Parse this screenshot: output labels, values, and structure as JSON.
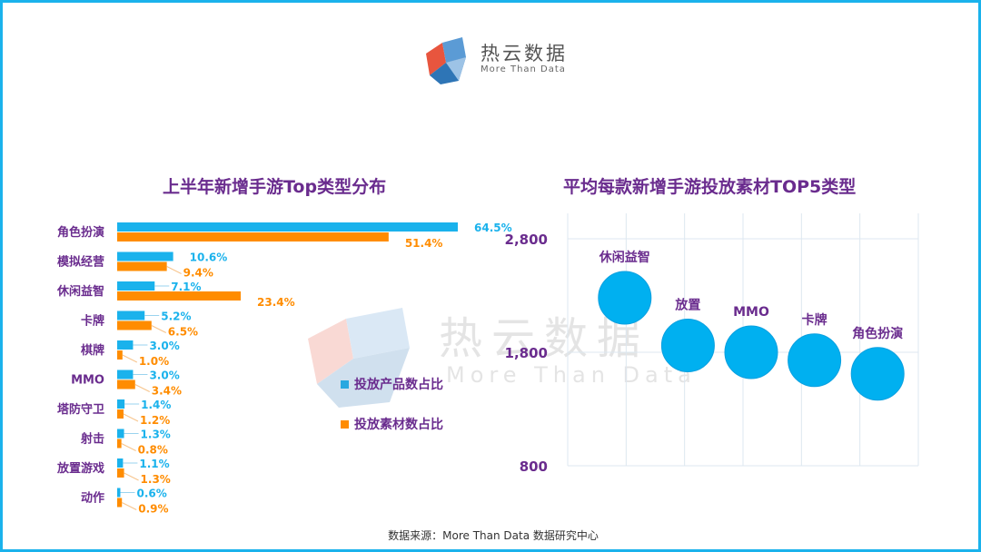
{
  "logo": {
    "title": "热云数据",
    "subtitle": "More Than Data",
    "icon": "cube-logo-icon"
  },
  "left_chart_title": "上半年新增手游Top类型分布",
  "right_chart_title": "平均每款新增手游投放素材TOP5类型",
  "watermark": {
    "title": "热云数据",
    "subtitle": "More Than Data"
  },
  "legend": [
    {
      "label": "投放产品数占比",
      "color": "#29a8e0"
    },
    {
      "label": "投放素材数占比",
      "color": "#ff8c00"
    }
  ],
  "source": "数据来源：More Than Data 数据研究中心",
  "colors": {
    "series1": "#1ab2ec",
    "series2": "#ff8c00",
    "bubble": "#00b0f0",
    "title": "#6a2c8e"
  },
  "chart_data": [
    {
      "type": "bar",
      "orientation": "horizontal",
      "title": "上半年新增手游Top类型分布",
      "categories": [
        "角色扮演",
        "模拟经营",
        "休闲益智",
        "卡牌",
        "棋牌",
        "MMO",
        "塔防守卫",
        "射击",
        "放置游戏",
        "动作"
      ],
      "series": [
        {
          "name": "投放产品数占比",
          "values": [
            64.5,
            10.6,
            7.1,
            5.2,
            3.0,
            3.0,
            1.4,
            1.3,
            1.1,
            0.6
          ],
          "labels": [
            "64.5%",
            "10.6%",
            "7.1%",
            "5.2%",
            "3.0%",
            "3.0%",
            "1.4%",
            "1.3%",
            "1.1%",
            "0.6%"
          ]
        },
        {
          "name": "投放素材数占比",
          "values": [
            51.4,
            9.4,
            23.4,
            6.5,
            1.0,
            3.4,
            1.2,
            0.8,
            1.3,
            0.9
          ],
          "labels": [
            "51.4%",
            "9.4%",
            "23.4%",
            "6.5%",
            "1.0%",
            "3.4%",
            "1.2%",
            "0.8%",
            "1.3%",
            "0.9%"
          ]
        }
      ],
      "xlim": [
        0,
        70
      ],
      "legend": "right"
    },
    {
      "type": "scatter",
      "title": "平均每款新增手游投放素材TOP5类型",
      "points": [
        {
          "label": "休闲益智",
          "y": 2280
        },
        {
          "label": "放置",
          "y": 1860
        },
        {
          "label": "MMO",
          "y": 1800
        },
        {
          "label": "卡牌",
          "y": 1730
        },
        {
          "label": "角色扮演",
          "y": 1610
        }
      ],
      "ylim": [
        800,
        2800
      ],
      "yticks": [
        "2,800",
        "1,800",
        "800"
      ],
      "grid": true
    }
  ]
}
